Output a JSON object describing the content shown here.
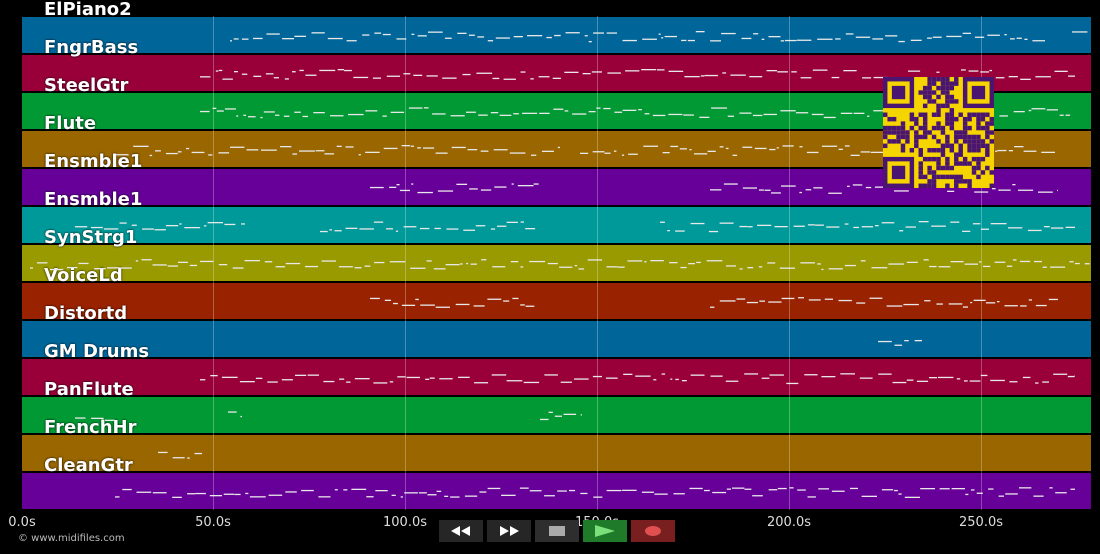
{
  "tracks": [
    {
      "name": "ElPiano2",
      "color": "#006699"
    },
    {
      "name": "FngrBass",
      "color": "#99003a"
    },
    {
      "name": "SteelGtr",
      "color": "#009933"
    },
    {
      "name": "Flute",
      "color": "#996600"
    },
    {
      "name": "Ensmble1",
      "color": "#660099"
    },
    {
      "name": "Ensmble1",
      "color": "#009999"
    },
    {
      "name": "SynStrg1",
      "color": "#999900"
    },
    {
      "name": "VoiceLd",
      "color": "#992200"
    },
    {
      "name": "Distortd",
      "color": "#006699"
    },
    {
      "name": "GM Drums",
      "color": "#99003a"
    },
    {
      "name": "PanFlute",
      "color": "#009933"
    },
    {
      "name": "FrenchHr",
      "color": "#996600"
    },
    {
      "name": "CleanGtr",
      "color": "#660099"
    }
  ],
  "timeline": {
    "ticks": [
      "0.0s",
      "50.0s",
      "100.0s",
      "150.0s",
      "200.0s",
      "250.0s"
    ]
  },
  "transport": {
    "rewind": "rewind-icon",
    "forward": "fast-forward-icon",
    "stop": "stop-icon",
    "play": "play-icon",
    "record": "record-icon"
  },
  "footer": {
    "copyright": "© www.midifiles.com"
  }
}
